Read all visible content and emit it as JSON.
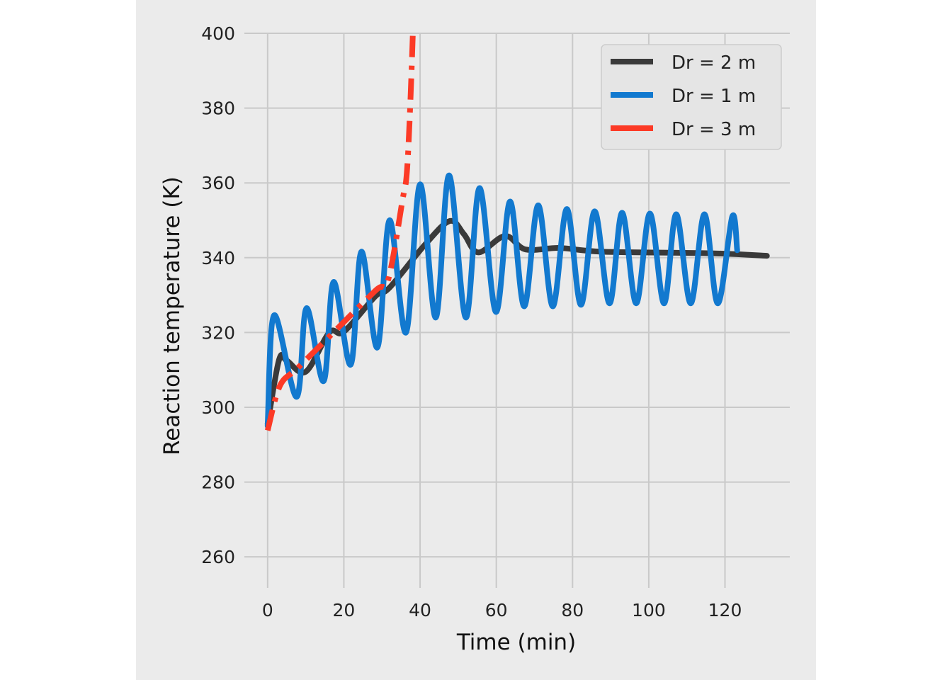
{
  "chart_data": {
    "type": "line",
    "title": "",
    "xlabel": "Time (min)",
    "ylabel": "Reaction temperature (K)",
    "xlim": [
      -6.1,
      137
    ],
    "ylim": [
      251.7,
      400
    ],
    "xticks": [
      0,
      20,
      40,
      60,
      80,
      100,
      120
    ],
    "yticks": [
      260,
      280,
      300,
      320,
      340,
      360,
      380,
      400
    ],
    "grid": true,
    "legend_position": "top-right",
    "series": [
      {
        "name": "Dr = 2 m",
        "color": "#3a3a3a",
        "style": "solid",
        "points": [
          [
            0,
            295.6
          ],
          [
            3,
            312.7
          ],
          [
            5,
            312.5
          ],
          [
            10,
            309.5
          ],
          [
            16.2,
            320
          ],
          [
            20,
            320.2
          ],
          [
            28.3,
            329.7
          ],
          [
            32,
            332
          ],
          [
            41.3,
            343.5
          ],
          [
            47.8,
            349.8
          ],
          [
            51.5,
            346.3
          ],
          [
            55.3,
            341.4
          ],
          [
            62.3,
            345.8
          ],
          [
            67.7,
            342.2
          ],
          [
            76.7,
            342.6
          ],
          [
            87.8,
            341.6
          ],
          [
            115.7,
            341.2
          ],
          [
            131,
            340.5
          ]
        ]
      },
      {
        "name": "Dr = 1 m",
        "color": "#1279cf",
        "style": "solid",
        "points": [
          [
            0,
            295
          ],
          [
            1.7,
            324.6
          ],
          [
            7.6,
            302.8
          ],
          [
            10.2,
            326.5
          ],
          [
            14.7,
            307
          ],
          [
            17.3,
            333.5
          ],
          [
            21.8,
            311.4
          ],
          [
            24.6,
            341.6
          ],
          [
            28.8,
            316
          ],
          [
            32,
            350
          ],
          [
            36.3,
            320
          ],
          [
            40,
            359.6
          ],
          [
            44.1,
            324
          ],
          [
            47.6,
            362
          ],
          [
            52,
            324
          ],
          [
            55.6,
            358.6
          ],
          [
            59.9,
            325.5
          ],
          [
            63.6,
            355
          ],
          [
            67.3,
            327
          ],
          [
            71,
            354
          ],
          [
            74.8,
            327
          ],
          [
            78.5,
            353
          ],
          [
            82.2,
            327.4
          ],
          [
            85.8,
            352.4
          ],
          [
            89.7,
            327.8
          ],
          [
            93,
            352
          ],
          [
            96.7,
            327.8
          ],
          [
            100.3,
            351.8
          ],
          [
            104,
            327.8
          ],
          [
            107.2,
            351.6
          ],
          [
            111,
            327.8
          ],
          [
            114.6,
            351.6
          ],
          [
            118.1,
            327.8
          ],
          [
            121.9,
            351
          ],
          [
            123.2,
            342
          ]
        ]
      },
      {
        "name": "Dr = 3 m",
        "color": "#fc3a26",
        "style": "dashdot",
        "points": [
          [
            0,
            293.8
          ],
          [
            3.2,
            305.7
          ],
          [
            7.8,
            310.4
          ],
          [
            15.3,
            318
          ],
          [
            28.3,
            331.2
          ],
          [
            31.6,
            334
          ],
          [
            35.3,
            354.9
          ],
          [
            36.7,
            365.3
          ],
          [
            38.1,
            400
          ],
          [
            38.4,
            420
          ]
        ]
      }
    ]
  }
}
